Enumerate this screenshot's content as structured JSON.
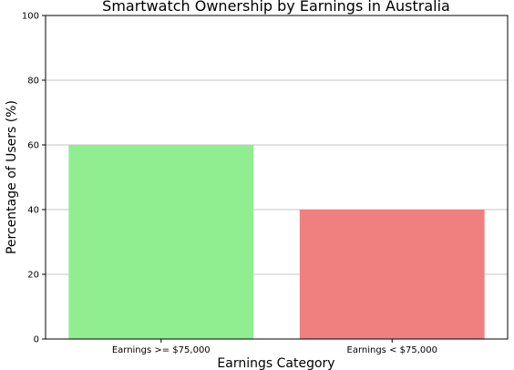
{
  "chart_data": {
    "type": "bar",
    "title": "Smartwatch Ownership by Earnings in Australia",
    "xlabel": "Earnings Category",
    "ylabel": "Percentage of Users (%)",
    "categories": [
      "Earnings >= $75,000",
      "Earnings < $75,000"
    ],
    "values": [
      60,
      40
    ],
    "colors": [
      "#90ee90",
      "#f08080"
    ],
    "ylim": [
      0,
      100
    ],
    "yticks": [
      0,
      20,
      40,
      60,
      80,
      100
    ],
    "grid": "horizontal"
  }
}
